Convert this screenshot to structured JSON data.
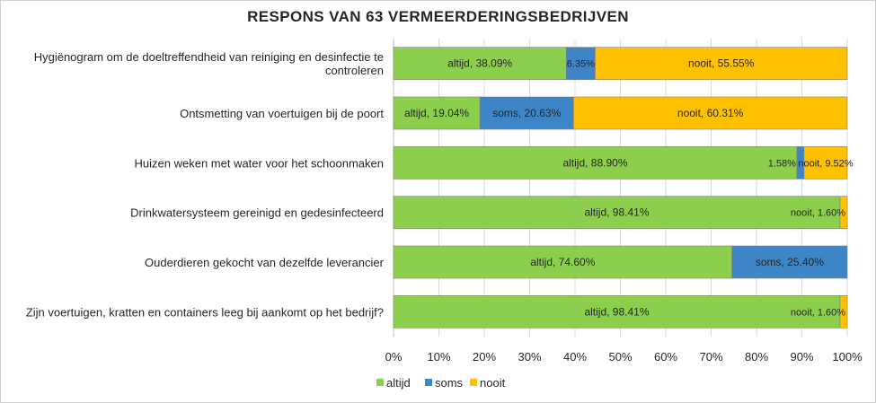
{
  "chart_data": {
    "type": "bar",
    "orientation": "horizontal",
    "stacked": true,
    "title": "RESPONS VAN 63 VERMEERDERINGSBEDRIJVEN",
    "categories": [
      [
        "Hygiënogram om de doeltreffendheid van reiniging en desinfectie te",
        "controleren"
      ],
      [
        "Ontsmetting van voertuigen bij de poort"
      ],
      [
        "Huizen weken met water voor het schoonmaken"
      ],
      [
        "Drinkwatersysteem gereinigd en gedesinfecteerd"
      ],
      [
        "Ouderdieren gekocht van dezelfde leverancier"
      ],
      [
        "Zijn voertuigen, kratten en containers leeg bij aankomt op het bedrijf?"
      ]
    ],
    "series": [
      {
        "name": "altijd",
        "color": "#8ccf4d",
        "values": [
          38.09,
          19.04,
          88.9,
          98.41,
          74.6,
          98.41
        ],
        "labels": [
          "altijd, 38.09%",
          "altijd, 19.04%",
          "altijd, 88.90%",
          "altijd, 98.41%",
          "altijd, 74.60%",
          "altijd, 98.41%"
        ]
      },
      {
        "name": "soms",
        "color": "#3d85c6",
        "values": [
          6.35,
          20.63,
          1.58,
          0,
          25.4,
          0
        ],
        "labels": [
          "6.35%",
          "soms, 20.63%",
          "1.58%",
          "",
          "soms, 25.40%",
          ""
        ]
      },
      {
        "name": "nooit",
        "color": "#ffc000",
        "values": [
          55.55,
          60.31,
          9.52,
          1.6,
          0,
          1.6
        ],
        "labels": [
          "nooit, 55.55%",
          "nooit, 60.31%",
          "nooit, 9.52%",
          "nooit, 1.60%",
          "",
          "nooit, 1.60%"
        ]
      }
    ],
    "xlim": [
      0,
      100
    ],
    "xticks": [
      "0%",
      "10%",
      "20%",
      "30%",
      "40%",
      "50%",
      "60%",
      "70%",
      "80%",
      "90%",
      "100%"
    ],
    "grid": true,
    "legend": "bottom-center"
  }
}
